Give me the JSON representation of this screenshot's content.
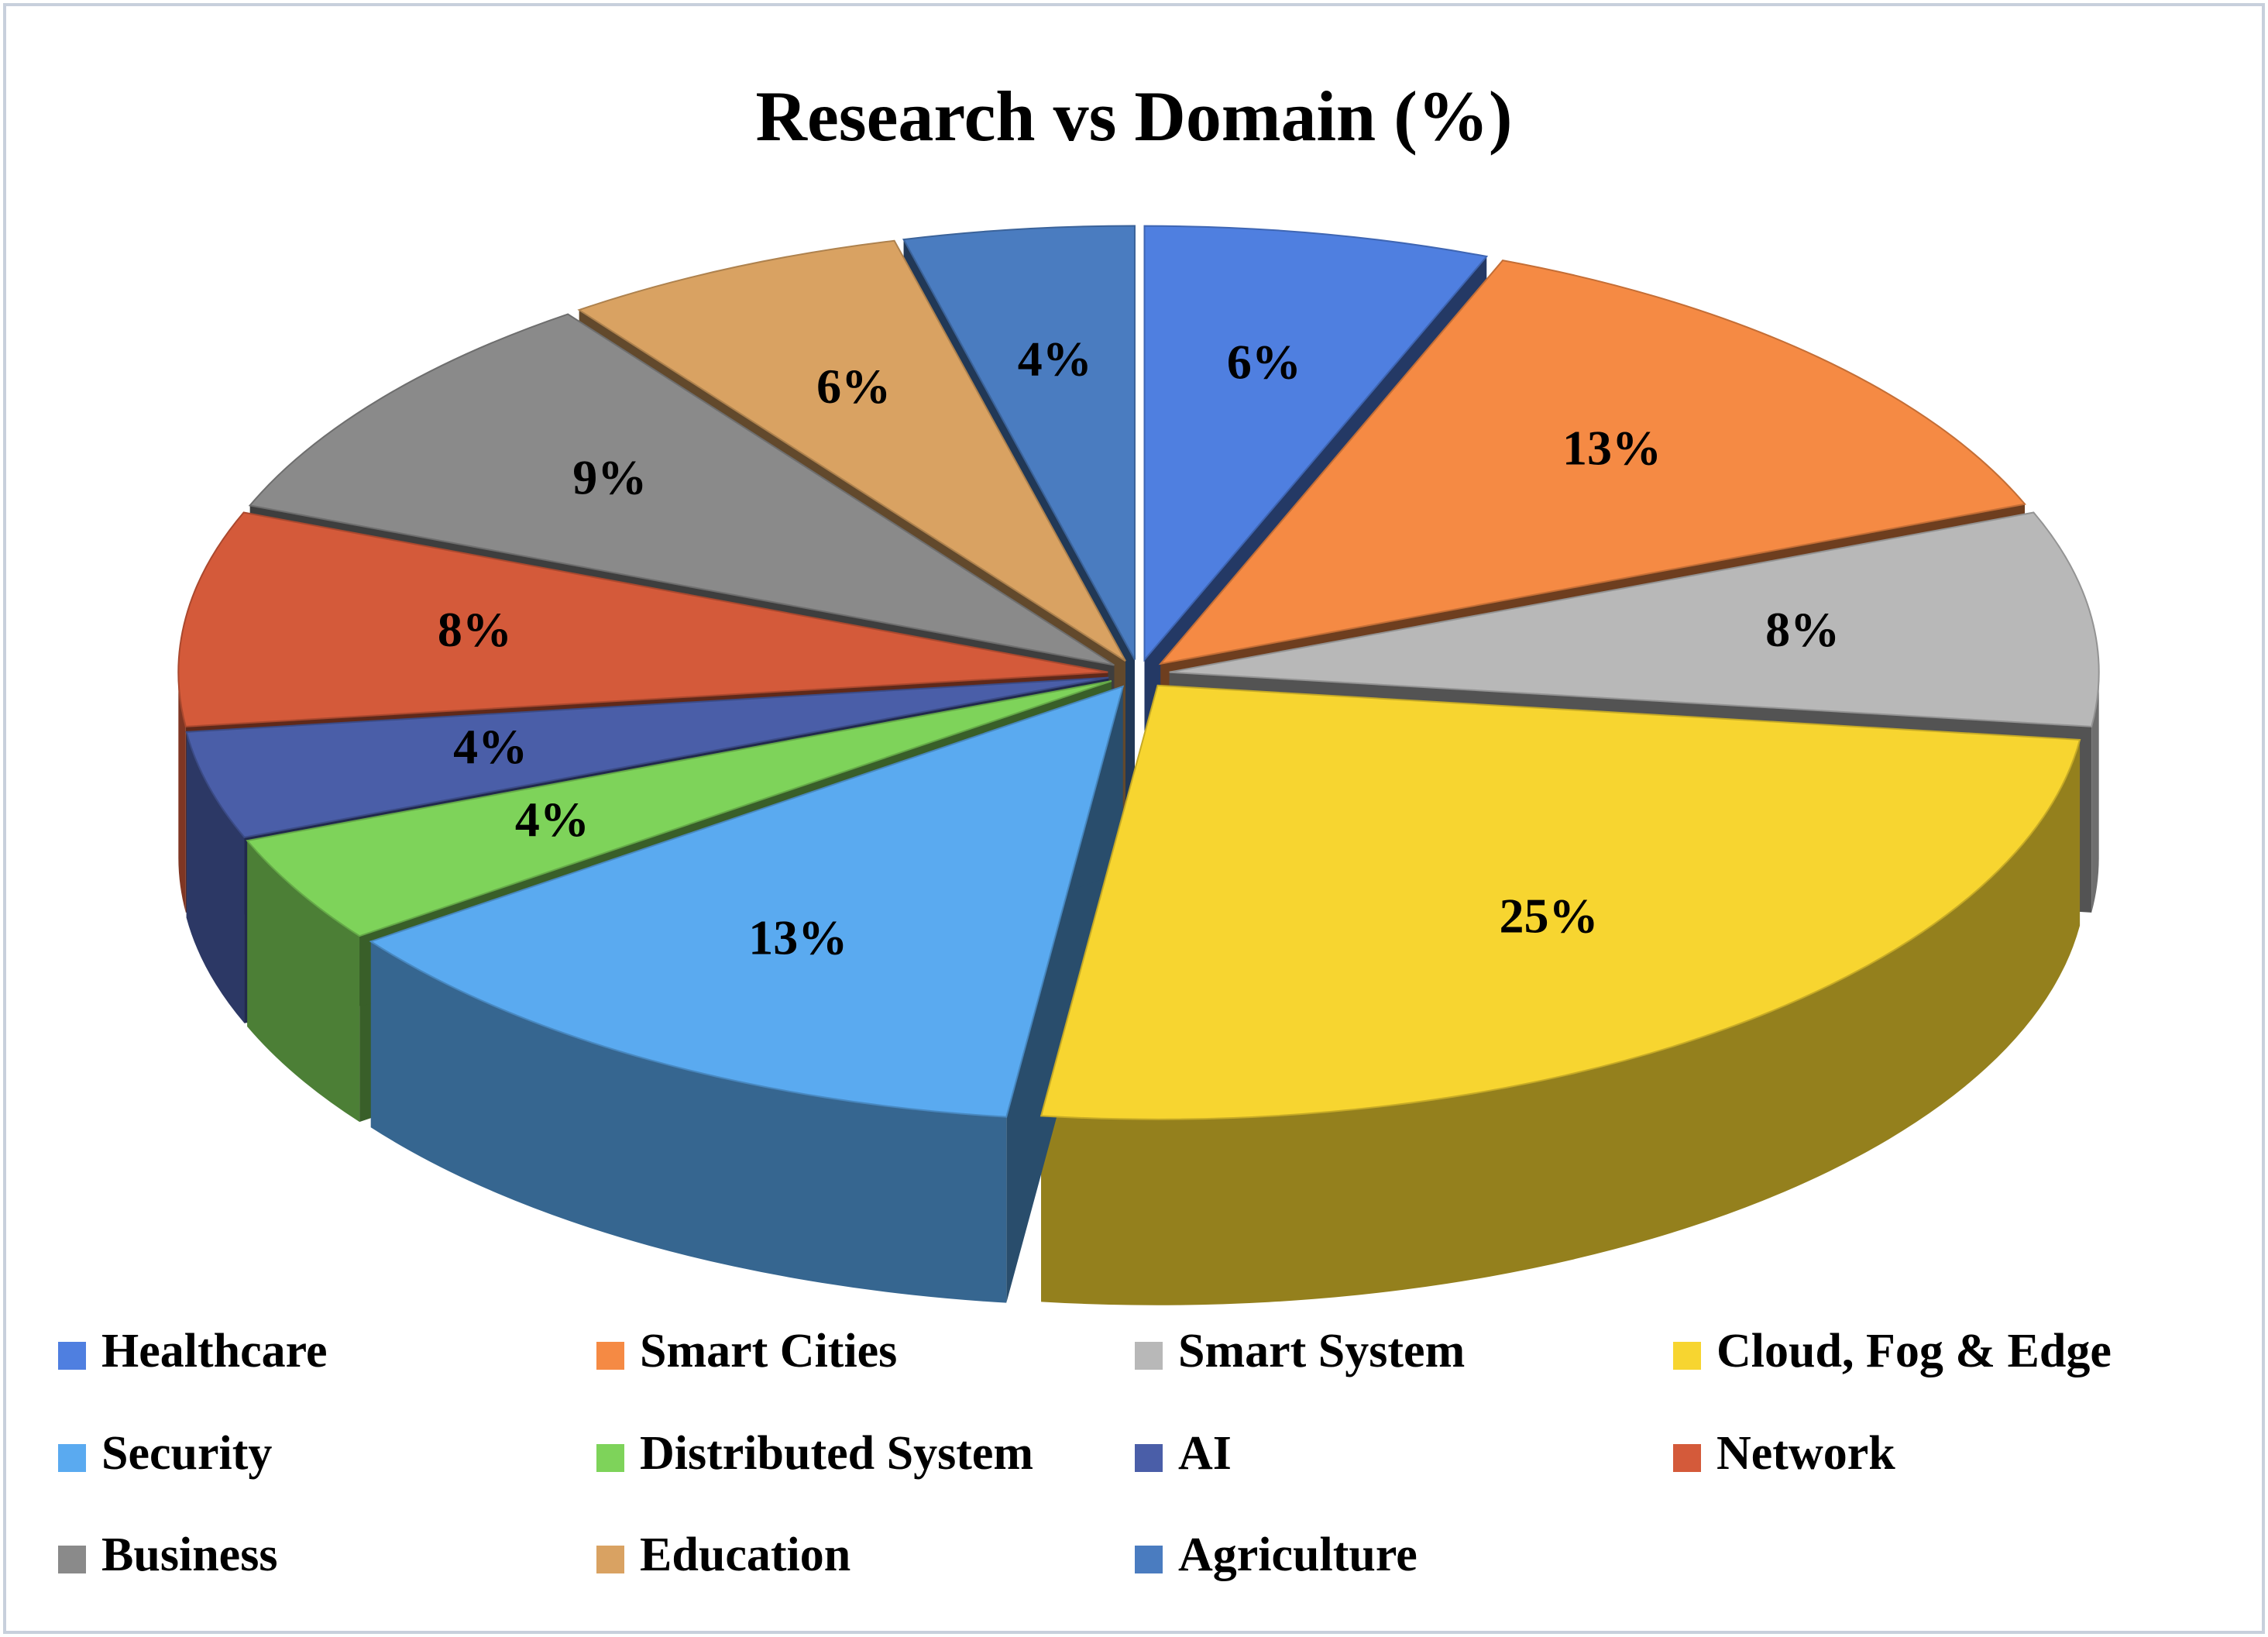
{
  "chart_data": {
    "type": "pie",
    "title": "Research vs Domain (%)",
    "categories": [
      "Healthcare",
      "Smart Cities",
      "Smart System",
      "Cloud, Fog & Edge",
      "Security",
      "Distributed System",
      "AI",
      "Network",
      "Business",
      "Education",
      "Agriculture"
    ],
    "values": [
      6,
      13,
      8,
      25,
      13,
      4,
      4,
      8,
      9,
      6,
      4
    ],
    "value_labels": [
      "6%",
      "13%",
      "8%",
      "25%",
      "13%",
      "4%",
      "4%",
      "8%",
      "9%",
      "6%",
      "4%"
    ],
    "colors": [
      "#4f7fe0",
      "#f58a44",
      "#b8b8b8",
      "#f7d530",
      "#5aaaf0",
      "#7ed35a",
      "#4a5ea8",
      "#d45a3a",
      "#8a8a8a",
      "#d9a262",
      "#4a7cc0"
    ]
  }
}
